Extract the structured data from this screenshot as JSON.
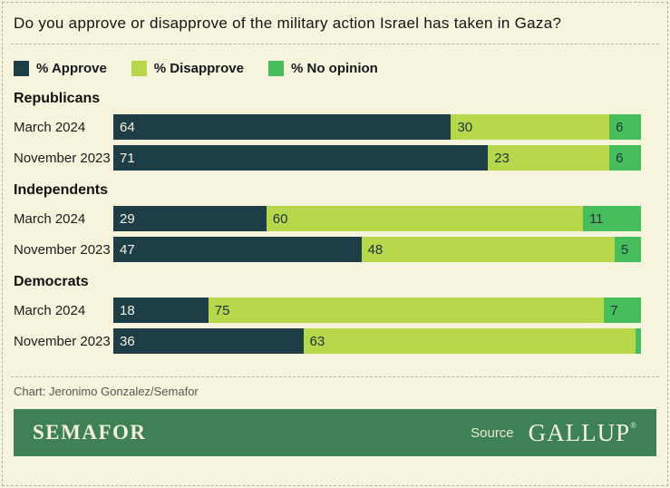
{
  "title": "Do you approve or disapprove of the military action Israel has taken in Gaza?",
  "legend": [
    {
      "label": "% Approve",
      "key": "approve"
    },
    {
      "label": "% Disapprove",
      "key": "disapprove"
    },
    {
      "label": "% No opinion",
      "key": "no_opinion"
    }
  ],
  "colors": {
    "background": "#f7f4de",
    "approve": "#1d3e46",
    "disapprove": "#b6d84a",
    "no_opinion": "#47bd5c",
    "approve_text": "#f6f3e0",
    "segment_text": "#20343a",
    "footer_bg": "#3e8156"
  },
  "chart_data": {
    "type": "bar",
    "orientation": "horizontal",
    "stacked": true,
    "unit": "%",
    "xlim": [
      0,
      100
    ],
    "title": "Do you approve or disapprove of the military action Israel has taken in Gaza?",
    "series_keys": [
      "approve",
      "disapprove",
      "no_opinion"
    ],
    "legend_position": "top",
    "groups": [
      {
        "name": "Republicans",
        "rows": [
          {
            "label": "March 2024",
            "values": [
              64,
              30,
              6
            ],
            "labels": [
              "64",
              "30",
              "6"
            ]
          },
          {
            "label": "November 2023",
            "values": [
              71,
              23,
              6
            ],
            "labels": [
              "71",
              "23",
              "6"
            ]
          }
        ]
      },
      {
        "name": "Independents",
        "rows": [
          {
            "label": "March 2024",
            "values": [
              29,
              60,
              11
            ],
            "labels": [
              "29",
              "60",
              "11"
            ]
          },
          {
            "label": "November 2023",
            "values": [
              47,
              48,
              5
            ],
            "labels": [
              "47",
              "48",
              "5"
            ]
          }
        ]
      },
      {
        "name": "Democrats",
        "rows": [
          {
            "label": "March 2024",
            "values": [
              18,
              75,
              7
            ],
            "labels": [
              "18",
              "75",
              "7"
            ]
          },
          {
            "label": "November 2023",
            "values": [
              36,
              63,
              1
            ],
            "labels": [
              "36",
              "63",
              ""
            ]
          }
        ]
      }
    ]
  },
  "credit": "Chart: Jeronimo Gonzalez/Semafor",
  "footer": {
    "brand": "SEMAFOR",
    "source_label": "Source",
    "source_name": "GALLUP",
    "registered_mark": "®"
  }
}
